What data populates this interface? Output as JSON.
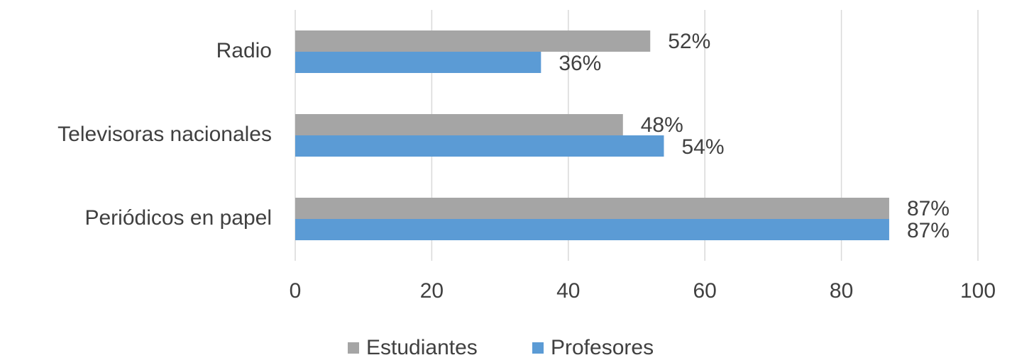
{
  "chart_data": {
    "type": "barh",
    "categories": [
      "Radio",
      "Televisoras nacionales",
      "Periódicos en papel"
    ],
    "series": [
      {
        "name": "Estudiantes",
        "color": "#a5a5a5",
        "values": [
          52,
          48,
          87
        ],
        "value_labels": [
          "52%",
          "48%",
          "87%"
        ]
      },
      {
        "name": "Profesores",
        "color": "#5b9bd5",
        "values": [
          36,
          54,
          87
        ],
        "value_labels": [
          "36%",
          "54%",
          "87%"
        ]
      }
    ],
    "xlim": [
      0,
      100
    ],
    "xticks": [
      0,
      20,
      40,
      60,
      80,
      100
    ],
    "grid": true,
    "legend": "bottom"
  }
}
